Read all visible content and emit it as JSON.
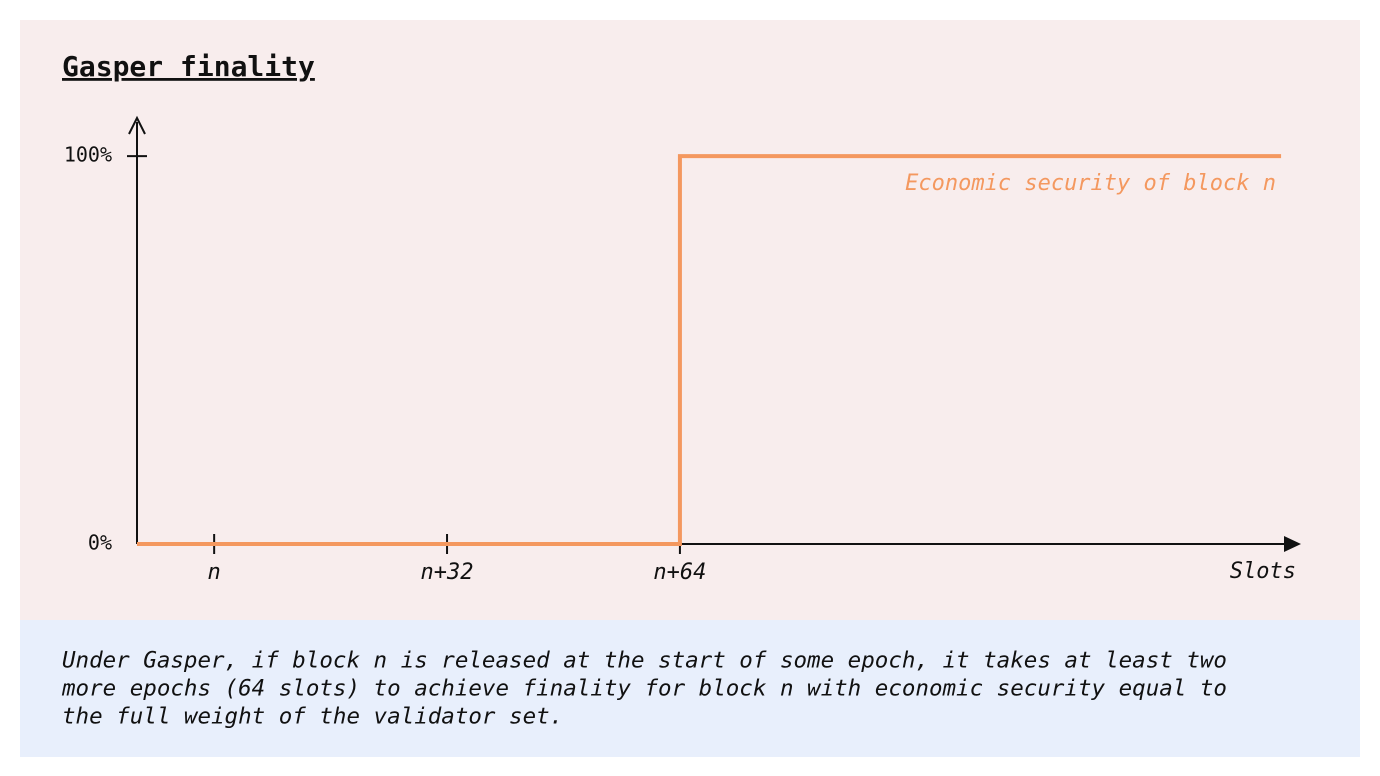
{
  "chart_data": {
    "type": "line",
    "title": "Gasper finality",
    "x": [
      -10.6,
      64,
      64,
      146.6
    ],
    "series": [
      {
        "name": "Economic security of block n",
        "color": "#f4985f",
        "values": [
          0,
          0,
          100,
          100
        ]
      }
    ],
    "xlim": [
      -10.6,
      149.2
    ],
    "ylim": [
      0,
      109.3
    ],
    "xticks": [
      {
        "value": 0,
        "label": "n"
      },
      {
        "value": 32,
        "label": "n+32"
      },
      {
        "value": 64,
        "label": "n+64"
      }
    ],
    "yticks": [
      {
        "value": 0,
        "label": "0%"
      },
      {
        "value": 100,
        "label": "100%"
      }
    ],
    "x_label": "Slots",
    "caption": [
      "Under Gasper, if block n is released at the start of some epoch, it takes at least two",
      "more epochs (64 slots) to achieve finality for block n with economic security equal to",
      "the full weight of the validator set."
    ]
  }
}
